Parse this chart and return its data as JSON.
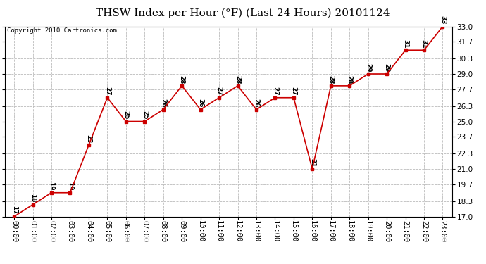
{
  "title": "THSW Index per Hour (°F) (Last 24 Hours) 20101124",
  "copyright": "Copyright 2010 Cartronics.com",
  "hours": [
    "00:00",
    "01:00",
    "02:00",
    "03:00",
    "04:00",
    "05:00",
    "06:00",
    "07:00",
    "08:00",
    "09:00",
    "10:00",
    "11:00",
    "12:00",
    "13:00",
    "14:00",
    "15:00",
    "16:00",
    "17:00",
    "18:00",
    "19:00",
    "20:00",
    "21:00",
    "22:00",
    "23:00"
  ],
  "values": [
    17,
    18,
    19,
    19,
    23,
    27,
    25,
    25,
    26,
    28,
    26,
    27,
    28,
    26,
    27,
    27,
    21,
    28,
    28,
    29,
    29,
    31,
    31,
    33
  ],
  "ylim": [
    17.0,
    33.0
  ],
  "yticks": [
    17.0,
    18.3,
    19.7,
    21.0,
    22.3,
    23.7,
    25.0,
    26.3,
    27.7,
    29.0,
    30.3,
    31.7,
    33.0
  ],
  "line_color": "#cc0000",
  "marker_color": "#cc0000",
  "bg_color": "#ffffff",
  "plot_bg_color": "#ffffff",
  "grid_color": "#bbbbbb",
  "title_fontsize": 11,
  "copyright_fontsize": 6.5,
  "label_fontsize": 6.5,
  "tick_fontsize": 7.5
}
